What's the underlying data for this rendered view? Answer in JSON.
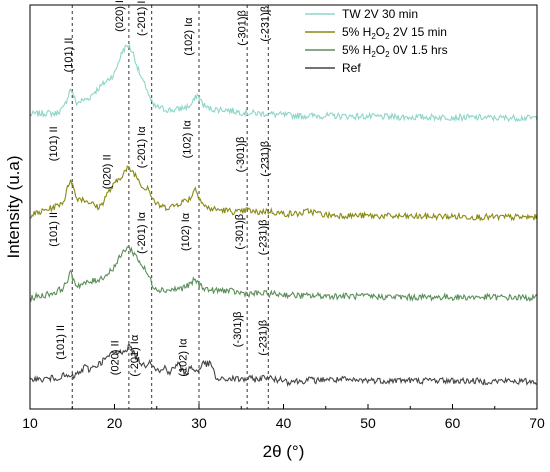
{
  "chart_data": {
    "type": "line",
    "title": "",
    "xlabel": "2θ (°)",
    "ylabel": "Intensity (u.a)",
    "xlim": [
      10,
      70
    ],
    "xticks": [
      10,
      20,
      30,
      40,
      50,
      60,
      70
    ],
    "grid": false,
    "legend_position": "top-right",
    "reference_lines": [
      15.0,
      21.7,
      24.4,
      30.0,
      35.7,
      38.2
    ],
    "series": [
      {
        "name": "TW 2V 30 min",
        "legend_parts": [
          "TW 2V 30 min"
        ],
        "color": "#8fd6c8",
        "points": [
          [
            10,
            0.4
          ],
          [
            11,
            0.45
          ],
          [
            12,
            0.5
          ],
          [
            13,
            0.45
          ],
          [
            14,
            0.85
          ],
          [
            14.8,
            2.25
          ],
          [
            15.5,
            1.2
          ],
          [
            16,
            1.35
          ],
          [
            17,
            1.55
          ],
          [
            17.5,
            1.95
          ],
          [
            18,
            2.2
          ],
          [
            19,
            2.75
          ],
          [
            20,
            3.3
          ],
          [
            20.5,
            4.2
          ],
          [
            21,
            5.0
          ],
          [
            21.6,
            5.35
          ],
          [
            22.2,
            4.8
          ],
          [
            22.8,
            3.6
          ],
          [
            23.3,
            2.8
          ],
          [
            23.8,
            2.3
          ],
          [
            24.2,
            1.5
          ],
          [
            24.6,
            1.0
          ],
          [
            25.5,
            0.85
          ],
          [
            26,
            0.75
          ],
          [
            27,
            0.7
          ],
          [
            28,
            0.85
          ],
          [
            29,
            1.0
          ],
          [
            29.8,
            1.8
          ],
          [
            30.5,
            1.1
          ],
          [
            31,
            0.85
          ],
          [
            32,
            0.75
          ],
          [
            33,
            0.75
          ],
          [
            34,
            0.65
          ],
          [
            35,
            0.55
          ],
          [
            36,
            0.5
          ],
          [
            38,
            0.45
          ],
          [
            40,
            0.35
          ],
          [
            42,
            0.3
          ],
          [
            45,
            0.3
          ],
          [
            50,
            0.25
          ],
          [
            55,
            0.2
          ],
          [
            60,
            0.2
          ],
          [
            65,
            0.15
          ],
          [
            70,
            0.15
          ]
        ]
      },
      {
        "name": "5% H2O2 2V 15 min",
        "legend_parts": [
          "5% H",
          "2",
          "O",
          "2",
          " 2V 15 min"
        ],
        "color": "#8a8a14",
        "points": [
          [
            10,
            0.35
          ],
          [
            11,
            0.5
          ],
          [
            12,
            0.75
          ],
          [
            13,
            0.95
          ],
          [
            14,
            1.35
          ],
          [
            14.8,
            3.0
          ],
          [
            15.5,
            1.55
          ],
          [
            16,
            1.55
          ],
          [
            17,
            1.3
          ],
          [
            18,
            0.9
          ],
          [
            18.5,
            1.1
          ],
          [
            19,
            1.75
          ],
          [
            20,
            2.55
          ],
          [
            21,
            3.3
          ],
          [
            21.6,
            3.7
          ],
          [
            22.2,
            3.45
          ],
          [
            23,
            2.75
          ],
          [
            23.5,
            2.2
          ],
          [
            24,
            2.45
          ],
          [
            24.3,
            1.75
          ],
          [
            25,
            1.1
          ],
          [
            26,
            0.9
          ],
          [
            27,
            1.0
          ],
          [
            28,
            1.3
          ],
          [
            29,
            1.55
          ],
          [
            29.5,
            2.3
          ],
          [
            30,
            1.7
          ],
          [
            30.5,
            1.1
          ],
          [
            31,
            0.85
          ],
          [
            32,
            0.75
          ],
          [
            33,
            0.7
          ],
          [
            34,
            0.6
          ],
          [
            35,
            0.55
          ],
          [
            35.7,
            0.75
          ],
          [
            36.5,
            0.55
          ],
          [
            37,
            0.55
          ],
          [
            38,
            0.65
          ],
          [
            40,
            0.45
          ],
          [
            42,
            0.45
          ],
          [
            43,
            0.65
          ],
          [
            45,
            0.35
          ],
          [
            50,
            0.3
          ],
          [
            55,
            0.25
          ],
          [
            60,
            0.25
          ],
          [
            65,
            0.2
          ],
          [
            70,
            0.2
          ]
        ]
      },
      {
        "name": "5% H2O2 0V 1.5 hrs",
        "legend_parts": [
          "5% H",
          "2",
          "O",
          "2",
          " 0V 1.5 hrs"
        ],
        "color": "#5b8f5b",
        "points": [
          [
            10,
            0.15
          ],
          [
            11,
            0.25
          ],
          [
            12,
            0.4
          ],
          [
            13,
            0.55
          ],
          [
            14,
            0.9
          ],
          [
            14.8,
            1.9
          ],
          [
            15.5,
            1.05
          ],
          [
            16,
            1.1
          ],
          [
            17,
            1.25
          ],
          [
            18,
            1.45
          ],
          [
            19,
            1.75
          ],
          [
            20,
            2.4
          ],
          [
            21,
            3.4
          ],
          [
            21.5,
            3.8
          ],
          [
            22,
            3.55
          ],
          [
            22.5,
            3.2
          ],
          [
            23,
            2.7
          ],
          [
            23.5,
            2.25
          ],
          [
            24,
            1.75
          ],
          [
            24.5,
            1.1
          ],
          [
            25,
            0.8
          ],
          [
            26,
            0.7
          ],
          [
            27,
            0.75
          ],
          [
            28,
            0.85
          ],
          [
            29,
            1.1
          ],
          [
            29.5,
            1.5
          ],
          [
            30,
            1.1
          ],
          [
            31,
            0.75
          ],
          [
            32,
            0.65
          ],
          [
            33,
            0.7
          ],
          [
            34,
            0.6
          ],
          [
            35,
            0.5
          ],
          [
            36,
            0.45
          ],
          [
            38,
            0.45
          ],
          [
            40,
            0.4
          ],
          [
            42,
            0.3
          ],
          [
            45,
            0.3
          ],
          [
            50,
            0.25
          ],
          [
            55,
            0.2
          ],
          [
            60,
            0.2
          ],
          [
            65,
            0.2
          ],
          [
            70,
            0.15
          ]
        ]
      },
      {
        "name": "Ref",
        "legend_parts": [
          "Ref"
        ],
        "color": "#454545",
        "points": [
          [
            10,
            0.3
          ],
          [
            10.5,
            0.55
          ],
          [
            11,
            0.35
          ],
          [
            12,
            0.45
          ],
          [
            13,
            0.5
          ],
          [
            14,
            0.65
          ],
          [
            15,
            0.55
          ],
          [
            16,
            0.95
          ],
          [
            16.5,
            1.3
          ],
          [
            17,
            1.1
          ],
          [
            17.5,
            1.3
          ],
          [
            18,
            1.45
          ],
          [
            19,
            1.9
          ],
          [
            20,
            2.35
          ],
          [
            20.5,
            2.25
          ],
          [
            21,
            2.45
          ],
          [
            21.5,
            2.6
          ],
          [
            21.8,
            2.85
          ],
          [
            22.2,
            2.3
          ],
          [
            22.8,
            1.8
          ],
          [
            23.5,
            1.35
          ],
          [
            24.2,
            1.75
          ],
          [
            25,
            1.1
          ],
          [
            25.5,
            0.95
          ],
          [
            26,
            1.3
          ],
          [
            26.5,
            0.85
          ],
          [
            27.5,
            1.55
          ],
          [
            28,
            1.05
          ],
          [
            28.5,
            0.85
          ],
          [
            29,
            1.3
          ],
          [
            29.5,
            1.0
          ],
          [
            30,
            1.1
          ],
          [
            30.5,
            1.55
          ],
          [
            31.5,
            1.45
          ],
          [
            32,
            0.45
          ],
          [
            32.5,
            0.35
          ],
          [
            33,
            0.4
          ],
          [
            34,
            0.45
          ],
          [
            35,
            0.4
          ],
          [
            36,
            0.45
          ],
          [
            37,
            0.4
          ],
          [
            38,
            0.6
          ],
          [
            39,
            0.35
          ],
          [
            40,
            0.45
          ],
          [
            40.5,
            0.2
          ],
          [
            41,
            0.3
          ],
          [
            42,
            0.25
          ],
          [
            43,
            0.4
          ],
          [
            44,
            0.3
          ],
          [
            45,
            0.45
          ],
          [
            46,
            0.35
          ],
          [
            47,
            0.4
          ],
          [
            48,
            0.3
          ],
          [
            50,
            0.35
          ],
          [
            52,
            0.3
          ],
          [
            54,
            0.35
          ],
          [
            56,
            0.3
          ],
          [
            58,
            0.35
          ],
          [
            60,
            0.3
          ],
          [
            62,
            0.3
          ],
          [
            64,
            0.25
          ],
          [
            66,
            0.3
          ],
          [
            68,
            0.25
          ],
          [
            70,
            0.25
          ]
        ]
      }
    ],
    "peak_labels": [
      {
        "series": 0,
        "text": "(101) II",
        "x": 15.0,
        "y": 3.4
      },
      {
        "series": 0,
        "text": "(020) II",
        "x": 21.0,
        "y": 6.3
      },
      {
        "series": 0,
        "text": "(-201) Iα",
        "x": 23.6,
        "y": 6.0
      },
      {
        "series": 0,
        "text": "(102) Iα",
        "x": 29.2,
        "y": 4.6
      },
      {
        "series": 0,
        "text": "(-301)β",
        "x": 35.5,
        "y": 5.3
      },
      {
        "series": 0,
        "text": "(-231)β",
        "x": 38.2,
        "y": 5.6
      },
      {
        "series": 1,
        "text": "(101) II",
        "x": 13.2,
        "y": 4.2
      },
      {
        "series": 1,
        "text": "(020) II",
        "x": 19.5,
        "y": 2.2
      },
      {
        "series": 1,
        "text": "(-201) Iα",
        "x": 23.6,
        "y": 3.7
      },
      {
        "series": 1,
        "text": "(102) Iα",
        "x": 29.0,
        "y": 4.4
      },
      {
        "series": 1,
        "text": "(-301)β",
        "x": 35.3,
        "y": 3.4
      },
      {
        "series": 1,
        "text": "(-231)β",
        "x": 38.2,
        "y": 3.1
      },
      {
        "series": 2,
        "text": "(101) II",
        "x": 13.2,
        "y": 3.8
      },
      {
        "series": 2,
        "text": "(-201) Iα",
        "x": 23.6,
        "y": 3.3
      },
      {
        "series": 2,
        "text": "(102) Iα",
        "x": 28.8,
        "y": 3.5
      },
      {
        "series": 2,
        "text": "(-301)β",
        "x": 35.2,
        "y": 3.6
      },
      {
        "series": 2,
        "text": "(-231)β",
        "x": 38.0,
        "y": 3.2
      },
      {
        "series": 3,
        "text": "(101) II",
        "x": 14.0,
        "y": 1.8
      },
      {
        "series": 3,
        "text": "(020) II",
        "x": 20.5,
        "y": 0.7
      },
      {
        "series": 3,
        "text": "(-201) Iα",
        "x": 22.8,
        "y": 0.6
      },
      {
        "series": 3,
        "text": "(102) Iα",
        "x": 28.5,
        "y": 0.6
      },
      {
        "series": 3,
        "text": "(-301)β",
        "x": 35.0,
        "y": 2.7
      },
      {
        "series": 3,
        "text": "(-231)β",
        "x": 38.0,
        "y": 2.1
      }
    ]
  }
}
